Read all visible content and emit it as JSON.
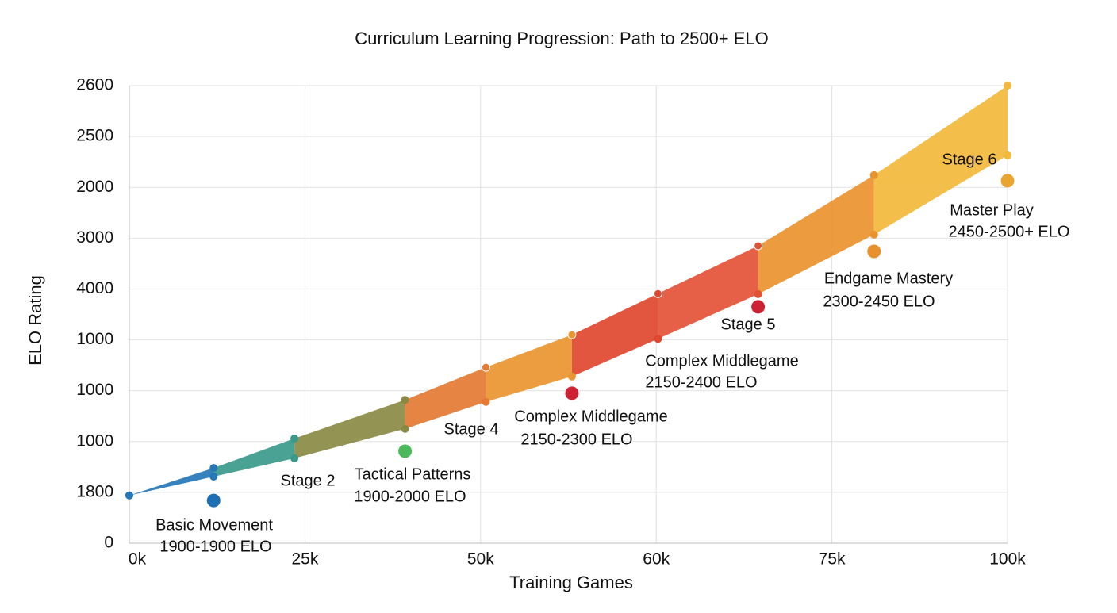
{
  "chart_data": {
    "type": "band",
    "title": "Curriculum Learning Progression: Path to 2500+ ELO",
    "x_label": "Training Games",
    "y_label": "ELO Rating",
    "xlim": [
      0,
      5
    ],
    "xticks": [
      {
        "value": 0,
        "label": "0k"
      },
      {
        "value": 1,
        "label": "25k"
      },
      {
        "value": 2,
        "label": "50k"
      },
      {
        "value": 3,
        "label": "60k"
      },
      {
        "value": 4,
        "label": "75k"
      },
      {
        "value": 5,
        "label": "100k"
      }
    ],
    "ylim": [
      0,
      9
    ],
    "yticks": [
      {
        "value": 0,
        "label": "0"
      },
      {
        "value": 1,
        "label": "1800"
      },
      {
        "value": 2,
        "label": "1000"
      },
      {
        "value": 3,
        "label": "1000"
      },
      {
        "value": 4,
        "label": "1000"
      },
      {
        "value": 5,
        "label": "4000"
      },
      {
        "value": 6,
        "label": "3000"
      },
      {
        "value": 7,
        "label": "2000"
      },
      {
        "value": 8,
        "label": "2500"
      },
      {
        "value": 9,
        "label": "2600"
      }
    ],
    "grid": true,
    "x": [
      0,
      0.48,
      0.94,
      1.57,
      2.03,
      2.52,
      3.01,
      3.58,
      4.24,
      5
    ],
    "upper": [
      0.94,
      1.48,
      2.06,
      2.82,
      3.46,
      4.1,
      4.91,
      5.85,
      7.24,
      9.0
    ],
    "lower": [
      0.94,
      1.31,
      1.67,
      2.25,
      2.78,
      3.28,
      4.02,
      4.9,
      6.07,
      7.63
    ],
    "segment_colors": [
      "#2577b8",
      "#3a9a8a",
      "#8a8a44",
      "#e47a34",
      "#ea9530",
      "#e0472e",
      "#e35236",
      "#ea922e",
      "#f3b83c"
    ],
    "markers": {
      "x": [
        0.48,
        1.57,
        2.52,
        3.58,
        4.24,
        5
      ],
      "values": [
        0.84,
        1.81,
        2.95,
        4.65,
        5.74,
        7.13
      ],
      "colors": [
        "#1f6fb5",
        "#4cb85c",
        "#cc2233",
        "#cc2233",
        "#e8902c",
        "#eaa530"
      ]
    },
    "annotations": [
      "Basic Movement",
      "1900-1900 ELO",
      "Stage 2",
      "Tactical Patterns",
      "1900-2000 ELO",
      "Stage 4",
      "Complex Middlegame",
      "2150-2300 ELO",
      "Stage 5",
      "Complex Middlegame",
      "2150-2400 ELO",
      "Endgame Mastery",
      "2300-2450 ELO",
      "Stage 6",
      "Master Play",
      "2450-2500+ ELO"
    ]
  }
}
